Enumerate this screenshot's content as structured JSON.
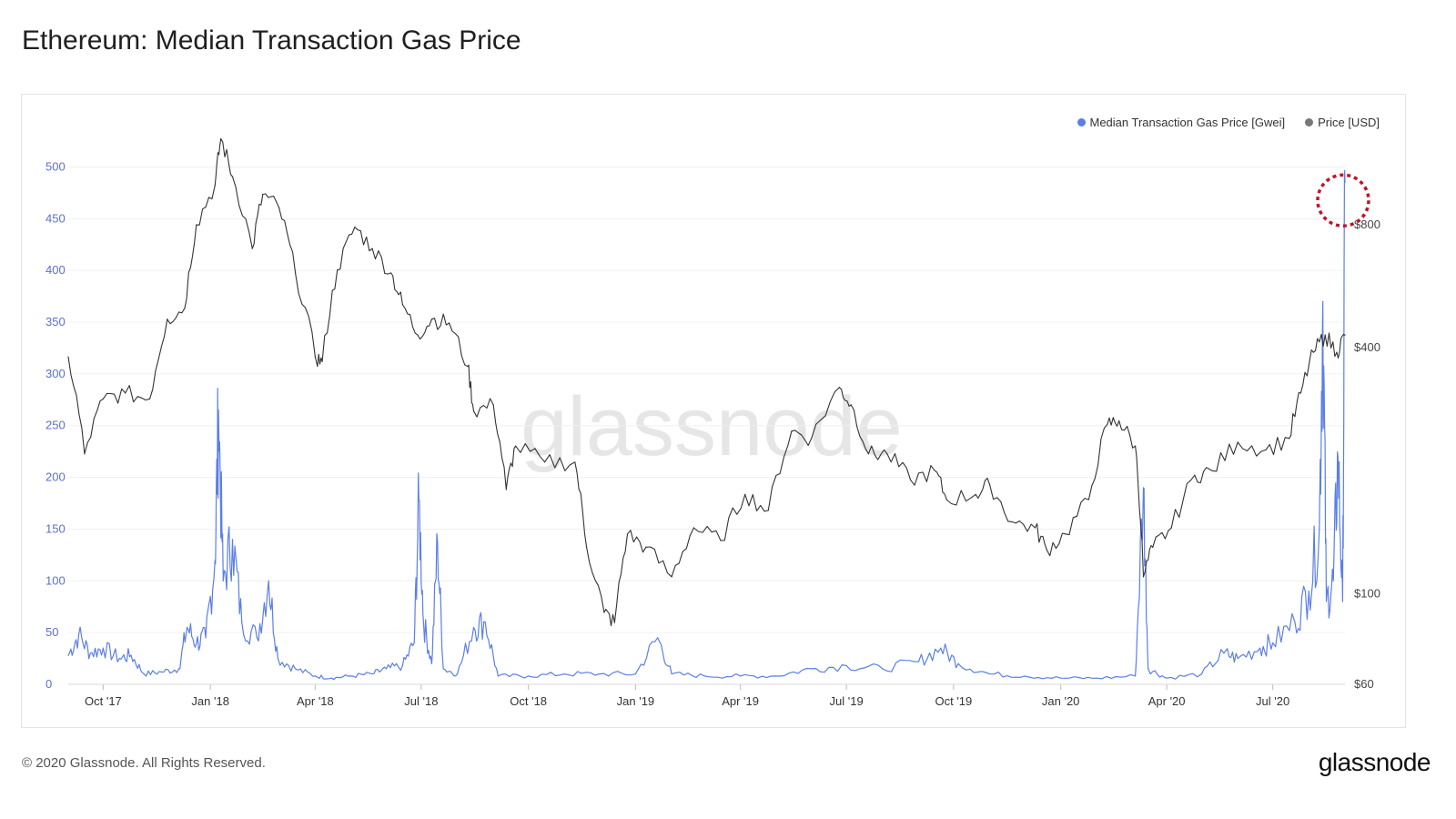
{
  "page": {
    "title": "Ethereum: Median Transaction Gas Price",
    "copyright": "© 2020 Glassnode. All Rights Reserved.",
    "logo_text": "glassnode",
    "watermark": "glassnode"
  },
  "colors": {
    "gas": "#5b7fe6",
    "price": "#333333",
    "left_axis_text": "#5b6fd6",
    "right_axis_text": "#444444",
    "highlight_circle": "#c0142a"
  },
  "chart_data": {
    "type": "line",
    "title": "Ethereum: Median Transaction Gas Price",
    "x_tick_labels": [
      "Oct '17",
      "Jan '18",
      "Apr '18",
      "Jul '18",
      "Oct '18",
      "Jan '19",
      "Apr '19",
      "Jul '19",
      "Oct '19",
      "Jan '20",
      "Apr '20",
      "Jul '20"
    ],
    "x_range": [
      "2017-09-01",
      "2020-09-01"
    ],
    "y_left": {
      "ticks": [
        0,
        50,
        100,
        150,
        200,
        250,
        300,
        350,
        400,
        450,
        500
      ],
      "range": [
        0,
        540
      ],
      "unit": "Gwei"
    },
    "y_right": {
      "tick_labels": [
        "$60",
        "$100",
        "$400",
        "$800"
      ],
      "tick_values": [
        60,
        100,
        400,
        800
      ],
      "scale": "log",
      "range": [
        60,
        1400
      ],
      "unit": "USD"
    },
    "legend_position": "top-right",
    "series": [
      {
        "name": "Median Transaction Gas Price [Gwei]",
        "axis": "left",
        "points": [
          [
            "2017-09-01",
            28
          ],
          [
            "2017-09-10",
            48
          ],
          [
            "2017-09-20",
            30
          ],
          [
            "2017-10-01",
            35
          ],
          [
            "2017-10-15",
            25
          ],
          [
            "2017-10-25",
            28
          ],
          [
            "2017-11-05",
            10
          ],
          [
            "2017-11-20",
            12
          ],
          [
            "2017-12-05",
            15
          ],
          [
            "2017-12-12",
            55
          ],
          [
            "2017-12-20",
            40
          ],
          [
            "2017-12-28",
            45
          ],
          [
            "2018-01-05",
            120
          ],
          [
            "2018-01-08",
            265
          ],
          [
            "2018-01-12",
            100
          ],
          [
            "2018-01-20",
            140
          ],
          [
            "2018-01-28",
            60
          ],
          [
            "2018-02-10",
            45
          ],
          [
            "2018-02-20",
            100
          ],
          [
            "2018-02-28",
            25
          ],
          [
            "2018-03-15",
            15
          ],
          [
            "2018-04-01",
            8
          ],
          [
            "2018-04-15",
            6
          ],
          [
            "2018-05-01",
            8
          ],
          [
            "2018-05-20",
            10
          ],
          [
            "2018-06-01",
            15
          ],
          [
            "2018-06-15",
            18
          ],
          [
            "2018-06-25",
            40
          ],
          [
            "2018-06-29",
            178
          ],
          [
            "2018-07-03",
            60
          ],
          [
            "2018-07-10",
            20
          ],
          [
            "2018-07-15",
            138
          ],
          [
            "2018-07-20",
            15
          ],
          [
            "2018-08-01",
            10
          ],
          [
            "2018-08-15",
            55
          ],
          [
            "2018-08-25",
            60
          ],
          [
            "2018-09-05",
            8
          ],
          [
            "2018-10-01",
            8
          ],
          [
            "2018-11-01",
            10
          ],
          [
            "2018-12-01",
            10
          ],
          [
            "2019-01-01",
            10
          ],
          [
            "2019-01-20",
            45
          ],
          [
            "2019-02-01",
            10
          ],
          [
            "2019-03-01",
            8
          ],
          [
            "2019-04-01",
            8
          ],
          [
            "2019-05-01",
            8
          ],
          [
            "2019-06-01",
            15
          ],
          [
            "2019-07-01",
            18
          ],
          [
            "2019-08-01",
            15
          ],
          [
            "2019-09-01",
            22
          ],
          [
            "2019-09-20",
            35
          ],
          [
            "2019-10-05",
            20
          ],
          [
            "2019-11-01",
            10
          ],
          [
            "2019-12-01",
            8
          ],
          [
            "2020-01-01",
            6
          ],
          [
            "2020-02-01",
            6
          ],
          [
            "2020-03-05",
            8
          ],
          [
            "2020-03-12",
            190
          ],
          [
            "2020-03-16",
            15
          ],
          [
            "2020-04-01",
            6
          ],
          [
            "2020-05-01",
            10
          ],
          [
            "2020-05-20",
            30
          ],
          [
            "2020-06-01",
            25
          ],
          [
            "2020-06-20",
            35
          ],
          [
            "2020-07-01",
            40
          ],
          [
            "2020-07-20",
            60
          ],
          [
            "2020-08-01",
            90
          ],
          [
            "2020-08-10",
            150
          ],
          [
            "2020-08-13",
            370
          ],
          [
            "2020-08-16",
            80
          ],
          [
            "2020-08-22",
            100
          ],
          [
            "2020-08-26",
            220
          ],
          [
            "2020-08-30",
            80
          ],
          [
            "2020-09-01",
            485
          ]
        ]
      },
      {
        "name": "Price [USD]",
        "axis": "right",
        "points": [
          [
            "2017-09-01",
            380
          ],
          [
            "2017-09-15",
            220
          ],
          [
            "2017-10-01",
            300
          ],
          [
            "2017-10-20",
            310
          ],
          [
            "2017-11-10",
            300
          ],
          [
            "2017-11-25",
            470
          ],
          [
            "2017-12-10",
            500
          ],
          [
            "2017-12-20",
            800
          ],
          [
            "2018-01-05",
            1000
          ],
          [
            "2018-01-10",
            1300
          ],
          [
            "2018-01-20",
            1050
          ],
          [
            "2018-02-06",
            700
          ],
          [
            "2018-02-15",
            950
          ],
          [
            "2018-03-01",
            880
          ],
          [
            "2018-03-15",
            610
          ],
          [
            "2018-04-01",
            380
          ],
          [
            "2018-04-07",
            370
          ],
          [
            "2018-04-20",
            620
          ],
          [
            "2018-05-05",
            790
          ],
          [
            "2018-05-20",
            700
          ],
          [
            "2018-06-05",
            610
          ],
          [
            "2018-06-15",
            510
          ],
          [
            "2018-06-28",
            430
          ],
          [
            "2018-07-10",
            470
          ],
          [
            "2018-07-25",
            460
          ],
          [
            "2018-08-10",
            360
          ],
          [
            "2018-08-15",
            280
          ],
          [
            "2018-09-01",
            290
          ],
          [
            "2018-09-12",
            180
          ],
          [
            "2018-09-20",
            230
          ],
          [
            "2018-10-15",
            210
          ],
          [
            "2018-11-10",
            210
          ],
          [
            "2018-11-20",
            130
          ],
          [
            "2018-12-05",
            90
          ],
          [
            "2018-12-14",
            85
          ],
          [
            "2018-12-25",
            140
          ],
          [
            "2019-01-10",
            130
          ],
          [
            "2019-02-01",
            110
          ],
          [
            "2019-02-20",
            145
          ],
          [
            "2019-03-15",
            135
          ],
          [
            "2019-04-05",
            175
          ],
          [
            "2019-04-25",
            160
          ],
          [
            "2019-05-15",
            250
          ],
          [
            "2019-06-01",
            240
          ],
          [
            "2019-06-25",
            320
          ],
          [
            "2019-07-05",
            290
          ],
          [
            "2019-07-20",
            220
          ],
          [
            "2019-08-05",
            220
          ],
          [
            "2019-08-25",
            190
          ],
          [
            "2019-09-15",
            200
          ],
          [
            "2019-09-25",
            170
          ],
          [
            "2019-10-20",
            175
          ],
          [
            "2019-11-01",
            185
          ],
          [
            "2019-11-20",
            150
          ],
          [
            "2019-12-10",
            145
          ],
          [
            "2019-12-20",
            128
          ],
          [
            "2020-01-05",
            140
          ],
          [
            "2020-01-25",
            170
          ],
          [
            "2020-02-10",
            260
          ],
          [
            "2020-02-20",
            265
          ],
          [
            "2020-03-05",
            230
          ],
          [
            "2020-03-12",
            110
          ],
          [
            "2020-03-20",
            130
          ],
          [
            "2020-04-05",
            145
          ],
          [
            "2020-04-25",
            195
          ],
          [
            "2020-05-10",
            200
          ],
          [
            "2020-06-01",
            235
          ],
          [
            "2020-06-25",
            225
          ],
          [
            "2020-07-15",
            240
          ],
          [
            "2020-07-25",
            310
          ],
          [
            "2020-08-05",
            390
          ],
          [
            "2020-08-15",
            430
          ],
          [
            "2020-08-25",
            390
          ],
          [
            "2020-09-01",
            430
          ]
        ]
      }
    ],
    "annotations": [
      {
        "type": "circle",
        "date": "2020-09-01",
        "value": 480
      }
    ]
  }
}
